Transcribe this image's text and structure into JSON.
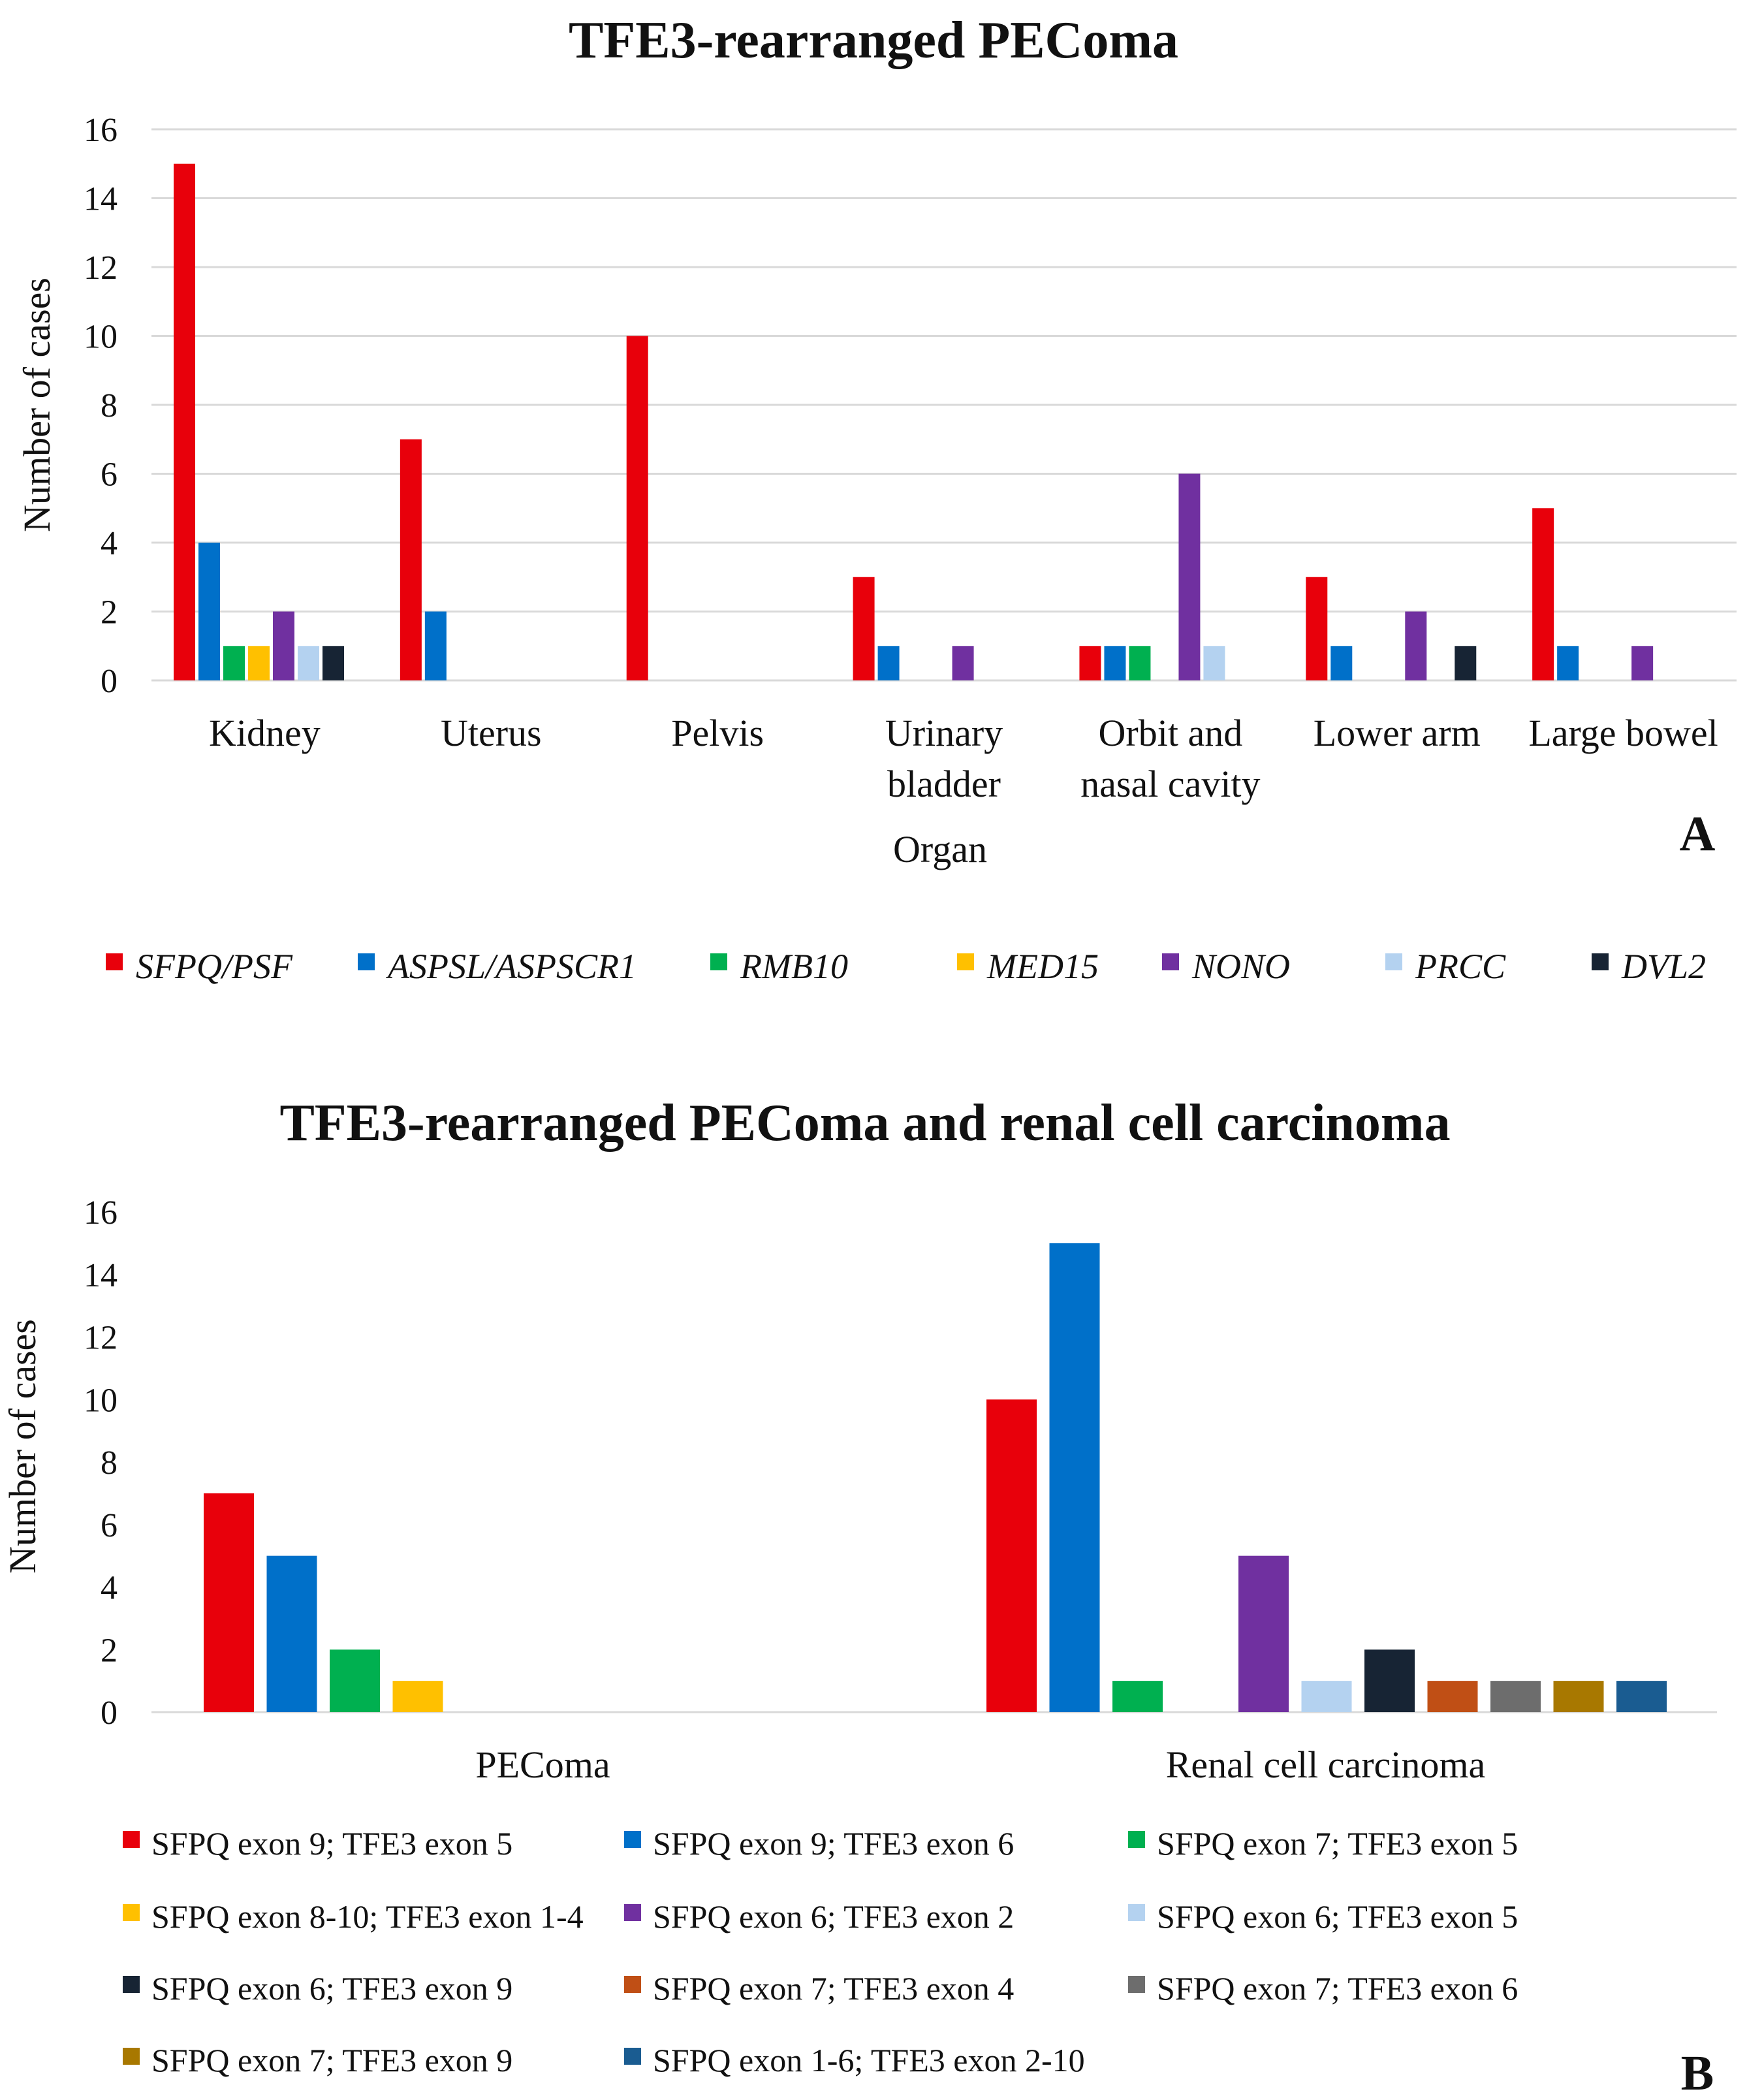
{
  "colors": {
    "red": "#e8000b",
    "blue": "#0070c9",
    "green": "#00b050",
    "yellow": "#ffc000",
    "purple": "#7030a0",
    "lightblue": "#b4d2f0",
    "navy": "#172434",
    "rust": "#c04f15",
    "gray": "#6d6d6d",
    "gold": "#a87800",
    "steel": "#1a5c91",
    "grid": "#d9d9d9",
    "text": "#111111"
  },
  "chart_data": [
    {
      "type": "bar",
      "title": "TFE3-rearranged PEComa",
      "panel_label": "A",
      "xlabel": "Organ",
      "ylabel": "Number of cases",
      "ylim": [
        0,
        16
      ],
      "yticks": [
        "0",
        "2",
        "4",
        "6",
        "8",
        "10",
        "12",
        "14",
        "16"
      ],
      "grid": true,
      "legend_position": "bottom",
      "legend_italic": true,
      "categories": [
        [
          "Kidney"
        ],
        [
          "Uterus"
        ],
        [
          "Pelvis"
        ],
        [
          "Urinary",
          "bladder"
        ],
        [
          "Orbit and",
          "nasal cavity"
        ],
        [
          "Lower arm"
        ],
        [
          "Large bowel"
        ]
      ],
      "series": [
        {
          "name": "SFPQ/PSF",
          "color": "red",
          "values": [
            15,
            7,
            10,
            3,
            1,
            3,
            5
          ]
        },
        {
          "name": "ASPSL/ASPSCR1",
          "color": "blue",
          "values": [
            4,
            2,
            0,
            1,
            1,
            1,
            1
          ]
        },
        {
          "name": "RMB10",
          "color": "green",
          "values": [
            1,
            0,
            0,
            0,
            1,
            0,
            0
          ]
        },
        {
          "name": "MED15",
          "color": "yellow",
          "values": [
            1,
            0,
            0,
            0,
            0,
            0,
            0
          ]
        },
        {
          "name": "NONO",
          "color": "purple",
          "values": [
            2,
            0,
            0,
            1,
            6,
            2,
            1
          ]
        },
        {
          "name": "PRCC",
          "color": "lightblue",
          "values": [
            1,
            0,
            0,
            0,
            1,
            0,
            0
          ]
        },
        {
          "name": "DVL2",
          "color": "navy",
          "values": [
            1,
            0,
            0,
            0,
            0,
            1,
            0
          ]
        }
      ]
    },
    {
      "type": "bar",
      "title": "TFE3-rearranged PEComa and renal cell carcinoma",
      "panel_label": "B",
      "xlabel": "",
      "ylabel": "Number of cases",
      "ylim": [
        0,
        16
      ],
      "yticks": [
        "0",
        "2",
        "4",
        "6",
        "8",
        "10",
        "12",
        "14",
        "16"
      ],
      "grid": false,
      "legend_position": "bottom",
      "legend_italic": false,
      "categories": [
        [
          "PEComa"
        ],
        [
          "Renal cell carcinoma"
        ]
      ],
      "series": [
        {
          "name": "SFPQ exon 9; TFE3 exon 5",
          "color": "red",
          "values": [
            7,
            10
          ]
        },
        {
          "name": "SFPQ exon 9; TFE3 exon 6",
          "color": "blue",
          "values": [
            5,
            15
          ]
        },
        {
          "name": "SFPQ exon 7; TFE3 exon 5",
          "color": "green",
          "values": [
            2,
            1
          ]
        },
        {
          "name": "SFPQ exon 8-10; TFE3 exon 1-4",
          "color": "yellow",
          "values": [
            1,
            0
          ]
        },
        {
          "name": "SFPQ exon 6; TFE3 exon 2",
          "color": "purple",
          "values": [
            0,
            5
          ]
        },
        {
          "name": "SFPQ exon 6; TFE3 exon 5",
          "color": "lightblue",
          "values": [
            0,
            1
          ]
        },
        {
          "name": "SFPQ exon 6; TFE3 exon 9",
          "color": "navy",
          "values": [
            0,
            2
          ]
        },
        {
          "name": "SFPQ exon 7; TFE3 exon 4",
          "color": "rust",
          "values": [
            0,
            1
          ]
        },
        {
          "name": "SFPQ exon 7; TFE3 exon 6",
          "color": "gray",
          "values": [
            0,
            1
          ]
        },
        {
          "name": "SFPQ exon 7; TFE3 exon 9",
          "color": "gold",
          "values": [
            0,
            1
          ]
        },
        {
          "name": "SFPQ exon 1-6; TFE3 exon 2-10",
          "color": "steel",
          "values": [
            0,
            1
          ]
        }
      ]
    }
  ]
}
